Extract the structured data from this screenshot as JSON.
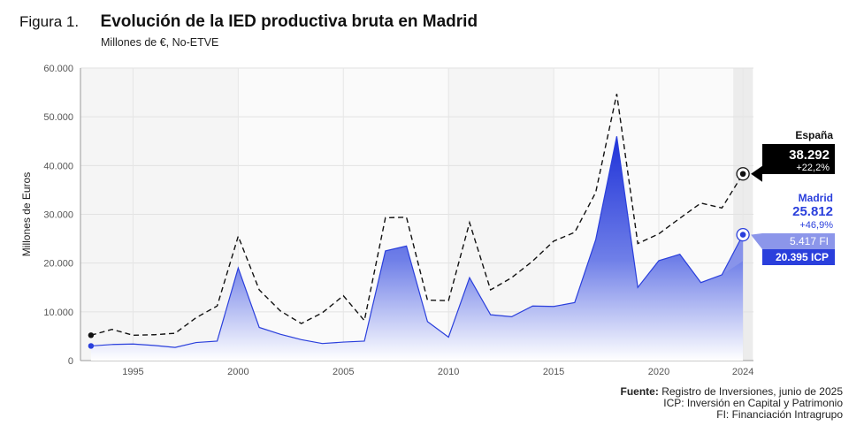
{
  "figure": {
    "label": "Figura 1.",
    "title": "Evolución de la IED productiva bruta en Madrid",
    "subtitle": "Millones de €, No-ETVE"
  },
  "source": {
    "label": "Fuente:",
    "text": "Registro de Inversiones, junio de 2025",
    "note_icp": "ICP: Inversión en Capital y Patrimonio",
    "note_fi": "FI: Financiación Intragrupo"
  },
  "colors": {
    "espana": "#111111",
    "madrid": "#2a3fdc",
    "madrid_fill_top": "#1f32d8",
    "fi_box": "#8c96ea",
    "icp_box": "#2a3fdc",
    "highlight_band": "#ececec"
  },
  "chart_data": {
    "type": "area",
    "xlabel": "",
    "ylabel": "Millones de Euros",
    "ylim": [
      0,
      60000
    ],
    "xlim": [
      1993,
      2024
    ],
    "yticks": [
      0,
      10000,
      20000,
      30000,
      40000,
      50000,
      60000
    ],
    "ytick_labels": [
      "0",
      "10.000",
      "20.000",
      "30.000",
      "40.000",
      "50.000",
      "60.000"
    ],
    "xticks": [
      1995,
      2000,
      2005,
      2010,
      2015,
      2020,
      2024
    ],
    "xtick_labels": [
      "1995",
      "2000",
      "2005",
      "2010",
      "2015",
      "2020",
      "2024"
    ],
    "grid": true,
    "x": [
      1993,
      1994,
      1995,
      1996,
      1997,
      1998,
      1999,
      2000,
      2001,
      2002,
      2003,
      2004,
      2005,
      2006,
      2007,
      2008,
      2009,
      2010,
      2011,
      2012,
      2013,
      2014,
      2015,
      2016,
      2017,
      2018,
      2019,
      2020,
      2021,
      2022,
      2023,
      2024
    ],
    "series": [
      {
        "name": "España",
        "style": "dashed-line",
        "values": [
          5200,
          6400,
          5200,
          5300,
          5600,
          8800,
          11200,
          25500,
          14500,
          10200,
          7600,
          9800,
          13300,
          8200,
          29300,
          29400,
          12400,
          12300,
          28300,
          14500,
          17000,
          20400,
          24500,
          26300,
          34500,
          54700,
          24000,
          26000,
          29200,
          32300,
          31300,
          38292
        ]
      },
      {
        "name": "Madrid",
        "style": "area",
        "values": [
          3000,
          3300,
          3400,
          3100,
          2700,
          3700,
          4000,
          19000,
          6800,
          5400,
          4300,
          3500,
          3800,
          4000,
          22500,
          23500,
          8000,
          4800,
          17000,
          9400,
          9000,
          11200,
          11100,
          11900,
          24800,
          46000,
          15000,
          20500,
          21800,
          16000,
          17600,
          25812
        ]
      }
    ],
    "icp_series": {
      "name": "ICP",
      "end_value": 20395
    },
    "highlight_year": 2024,
    "annotations": {
      "espana": {
        "label": "España",
        "value": "38.292",
        "change": "+22,2%"
      },
      "madrid": {
        "label": "Madrid",
        "value": "25.812",
        "change": "+46,9%"
      },
      "fi": "5.417 FI",
      "icp": "20.395 ICP"
    }
  }
}
